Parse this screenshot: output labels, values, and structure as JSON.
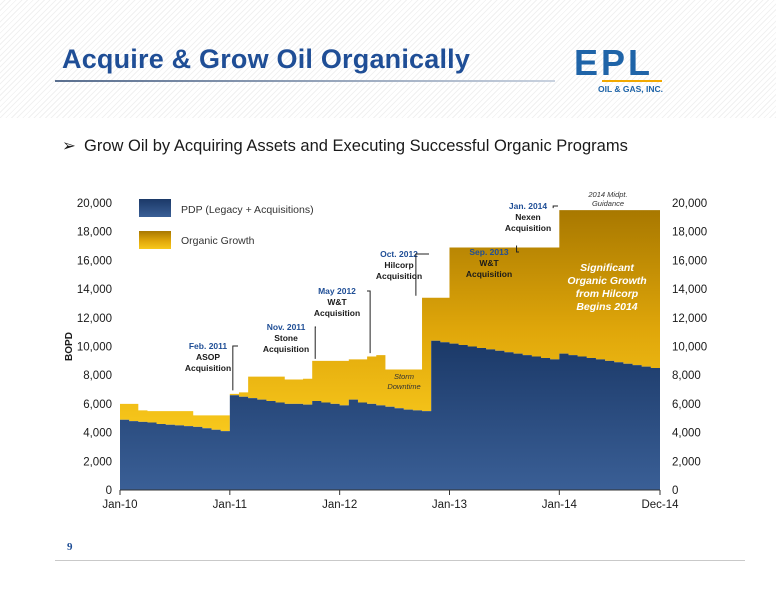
{
  "slide": {
    "title": "Acquire & Grow Oil Organically",
    "bullet_marker": "➢",
    "bullet": "Grow Oil by Acquiring Assets and Executing Successful Organic Programs",
    "page_number": "9"
  },
  "logo": {
    "text": "EPL",
    "subtext": "OIL & GAS, INC."
  },
  "colors": {
    "title": "#1f4e96",
    "pdp": "#1a3563",
    "organic_top": "#b07e00",
    "organic_bottom": "#f6c318",
    "annotation_date": "#1f4e96"
  },
  "chart_data": {
    "type": "area",
    "stacked": true,
    "ylabel": "BOPD",
    "ylim": [
      0,
      20000
    ],
    "y_ticks": [
      "0",
      "2,000",
      "4,000",
      "6,000",
      "8,000",
      "10,000",
      "12,000",
      "14,000",
      "16,000",
      "18,000",
      "20,000"
    ],
    "y_tick_values": [
      0,
      2000,
      4000,
      6000,
      8000,
      10000,
      12000,
      14000,
      16000,
      18000,
      20000
    ],
    "right_axis": true,
    "x_ticks": [
      "Jan-10",
      "Jan-11",
      "Jan-12",
      "Jan-13",
      "Jan-14",
      "Dec-14"
    ],
    "x_tick_values": [
      0,
      12,
      24,
      36,
      48,
      59
    ],
    "x_unit": "months since Jan-10",
    "legend_placement": "top-left",
    "series": [
      {
        "name": "PDP (Legacy + Acquisitions)",
        "x": [
          0,
          1,
          2,
          3,
          4,
          5,
          6,
          7,
          8,
          9,
          10,
          11,
          12,
          13,
          14,
          15,
          16,
          17,
          18,
          19,
          20,
          21,
          22,
          23,
          24,
          25,
          26,
          27,
          28,
          29,
          30,
          31,
          32,
          33,
          34,
          35,
          36,
          37,
          38,
          39,
          40,
          41,
          42,
          43,
          44,
          45,
          46,
          47,
          48,
          49,
          50,
          51,
          52,
          53,
          54,
          55,
          56,
          57,
          58,
          59
        ],
        "values": [
          4900,
          4800,
          4750,
          4700,
          4600,
          4550,
          4500,
          4450,
          4400,
          4300,
          4200,
          4100,
          6600,
          6500,
          6400,
          6300,
          6200,
          6100,
          6000,
          6000,
          5950,
          6200,
          6100,
          6000,
          5900,
          6300,
          6100,
          6000,
          5900,
          5800,
          5700,
          5600,
          5550,
          5500,
          10400,
          10300,
          10200,
          10100,
          10000,
          9900,
          9800,
          9700,
          9600,
          9500,
          9400,
          9300,
          9200,
          9100,
          9500,
          9400,
          9300,
          9200,
          9100,
          9000,
          8900,
          8800,
          8700,
          8600,
          8500,
          8400
        ]
      },
      {
        "name": "Organic Growth",
        "x": [
          0,
          1,
          2,
          3,
          4,
          5,
          6,
          7,
          8,
          9,
          10,
          11,
          12,
          13,
          14,
          15,
          16,
          17,
          18,
          19,
          20,
          21,
          22,
          23,
          24,
          25,
          26,
          27,
          28,
          29,
          30,
          31,
          32,
          33,
          34,
          35,
          36,
          37,
          38,
          39,
          40,
          41,
          42,
          43,
          44,
          45,
          46,
          47,
          48,
          49,
          50,
          51,
          52,
          53,
          54,
          55,
          56,
          57,
          58,
          59
        ],
        "values": [
          1100,
          1200,
          800,
          800,
          900,
          950,
          1000,
          1050,
          800,
          900,
          1000,
          1100,
          100,
          300,
          1500,
          1600,
          1700,
          1800,
          1700,
          1700,
          1800,
          2800,
          2900,
          3000,
          3100,
          2800,
          3000,
          3300,
          3500,
          2600,
          2700,
          2800,
          2850,
          7900,
          3000,
          3100,
          6700,
          6800,
          6900,
          7000,
          7100,
          7200,
          7300,
          7400,
          7500,
          7600,
          7700,
          7800,
          10000,
          10100,
          10200,
          10300,
          10400,
          10500,
          10600,
          10700,
          10800,
          10900,
          11000,
          11100
        ]
      }
    ],
    "annotations": [
      {
        "date": "Feb. 2011",
        "text": "ASOP\nAcquisition",
        "x": 13
      },
      {
        "date": "Nov. 2011",
        "text": "Stone\nAcquisition",
        "x": 22
      },
      {
        "date": "May 2012",
        "text": "W&T\nAcquisition",
        "x": 28
      },
      {
        "date": "Oct. 2012",
        "text": "Hilcorp\nAcquisition",
        "x": 33
      },
      {
        "date": "Sep. 2013",
        "text": "W&T\nAcquisition",
        "x": 44
      },
      {
        "date": "Jan. 2014",
        "text": "Nexen\nAcquisition",
        "x": 48
      }
    ],
    "callouts": {
      "storm": "Storm\nDowntime",
      "guidance": "2014 Midpt.\nGuidance",
      "significant": "Significant\nOrganic Growth\nfrom Hilcorp\nBegins 2014"
    }
  }
}
